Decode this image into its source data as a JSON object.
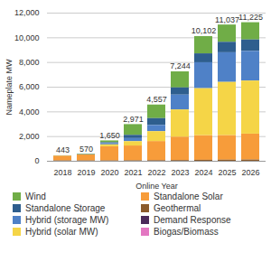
{
  "chart_data": {
    "type": "bar",
    "stacked": true,
    "grid": true,
    "legend": "bottom",
    "x_label": "Online Year",
    "y_label": "Nameplate MW",
    "categories": [
      "2018",
      "2019",
      "2020",
      "2021",
      "2022",
      "2023",
      "2024",
      "2025",
      "2026"
    ],
    "ylim": [
      0,
      12000
    ],
    "yticks": [
      0,
      {
        "value": 2000,
        "label": "2,000"
      },
      {
        "value": 4000,
        "label": "4,000"
      },
      {
        "value": 6000,
        "label": "6,000"
      },
      {
        "value": 8000,
        "label": "8,000"
      },
      {
        "value": 10000,
        "label": "10,000"
      },
      {
        "value": 12000,
        "label": "12,000"
      }
    ],
    "series": [
      {
        "name": "Wind",
        "color": "#70ad47",
        "values": [
          33,
          40,
          150,
          870,
          1100,
          1300,
          1400,
          1400,
          1400
        ]
      },
      {
        "name": "Standalone Solar",
        "color": "#f79c3a",
        "values": [
          380,
          480,
          1150,
          1200,
          1550,
          1900,
          2000,
          2000,
          2100
        ]
      },
      {
        "name": "Standalone Storage",
        "color": "#2e5e8e",
        "values": [
          0,
          20,
          70,
          261,
          557,
          584,
          722,
          847,
          925
        ]
      },
      {
        "name": "Geothermal",
        "color": "#8b5a2b",
        "values": [
          30,
          30,
          30,
          40,
          50,
          60,
          80,
          90,
          100
        ]
      },
      {
        "name": "Hybrid (storage MW)",
        "color": "#4f81c7",
        "values": [
          0,
          0,
          100,
          250,
          500,
          1200,
          2100,
          2400,
          2400
        ]
      },
      {
        "name": "Demand Response",
        "color": "#4b2a5a",
        "values": [
          0,
          0,
          0,
          0,
          0,
          0,
          0,
          0,
          0
        ]
      },
      {
        "name": "Hybrid (solar MW)",
        "color": "#f5d547",
        "values": [
          0,
          0,
          150,
          350,
          800,
          2200,
          3800,
          4300,
          4300
        ]
      },
      {
        "name": "Biogas/Biomass",
        "color": "#e377c2",
        "values": [
          0,
          0,
          0,
          0,
          0,
          0,
          0,
          0,
          0
        ]
      }
    ],
    "totals": [
      443,
      570,
      1650,
      2971,
      4557,
      7244,
      10102,
      11037,
      11225
    ],
    "total_labels": [
      "443",
      "570",
      "1,650",
      "2,971",
      "4,557",
      "7,244",
      "10,102",
      "11,037",
      "11,225"
    ]
  }
}
